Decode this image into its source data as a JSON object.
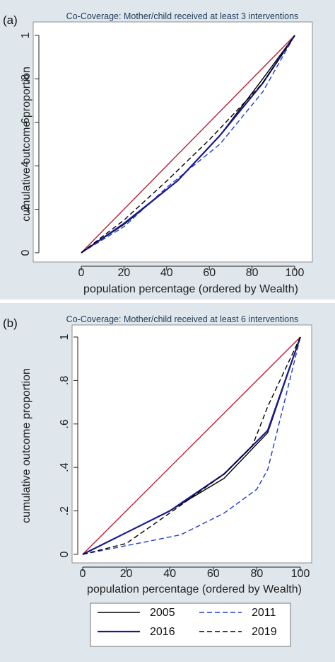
{
  "chart_data": [
    {
      "type": "line",
      "panel_label": "(a)",
      "title": "Co-Coverage: Mother/child received at least 3 interventions",
      "xlabel": "population percentage (ordered by Wealth)",
      "ylabel": "cumulative outcome proportion",
      "xlim": [
        0,
        100
      ],
      "ylim": [
        0,
        1
      ],
      "x_ticks": [
        "0",
        "20",
        "40",
        "60",
        "80",
        "100"
      ],
      "y_ticks": [
        "0",
        ".2",
        ".4",
        ".6",
        ".8",
        "1"
      ],
      "grid": false,
      "series": [
        {
          "name": "equality",
          "color": "#b22234",
          "style": "solid",
          "x": [
            0,
            100
          ],
          "y": [
            0,
            1
          ]
        },
        {
          "name": "2005",
          "color": "#000000",
          "style": "solid",
          "x": [
            0,
            20,
            45,
            65,
            85,
            100
          ],
          "y": [
            0,
            0.13,
            0.33,
            0.54,
            0.8,
            1
          ]
        },
        {
          "name": "2011",
          "color": "#1f3ad6",
          "style": "dashed",
          "x": [
            0,
            20,
            40,
            65,
            85,
            100
          ],
          "y": [
            0,
            0.12,
            0.3,
            0.5,
            0.74,
            1
          ]
        },
        {
          "name": "2016",
          "color": "#1a1a8c",
          "style": "solid",
          "x": [
            0,
            20,
            45,
            65,
            85,
            100
          ],
          "y": [
            0,
            0.135,
            0.33,
            0.54,
            0.78,
            1
          ]
        },
        {
          "name": "2019",
          "color": "#000000",
          "style": "dashed",
          "x": [
            0,
            20,
            40,
            60,
            85,
            100
          ],
          "y": [
            0,
            0.15,
            0.33,
            0.52,
            0.78,
            1
          ]
        }
      ]
    },
    {
      "type": "line",
      "panel_label": "(b)",
      "title": "Co-Coverage: Mother/child received at least 6 interventions",
      "xlabel": "population percentage (ordered by Wealth)",
      "ylabel": "cumulative outcome proportion",
      "xlim": [
        0,
        100
      ],
      "ylim": [
        0,
        1
      ],
      "x_ticks": [
        "0",
        "20",
        "40",
        "60",
        "80",
        "100"
      ],
      "y_ticks": [
        "0",
        ".2",
        ".4",
        ".6",
        ".8",
        "1"
      ],
      "grid": false,
      "series": [
        {
          "name": "equality",
          "color": "#b22234",
          "style": "solid",
          "x": [
            0,
            100
          ],
          "y": [
            0,
            1
          ]
        },
        {
          "name": "2005",
          "color": "#000000",
          "style": "solid",
          "x": [
            0,
            20,
            40,
            65,
            85,
            100
          ],
          "y": [
            0,
            0.1,
            0.2,
            0.35,
            0.56,
            1
          ]
        },
        {
          "name": "2011",
          "color": "#1f3ad6",
          "style": "dashed",
          "x": [
            0,
            20,
            45,
            65,
            80,
            85,
            100
          ],
          "y": [
            0,
            0.04,
            0.09,
            0.19,
            0.3,
            0.39,
            1
          ]
        },
        {
          "name": "2016",
          "color": "#1a1a8c",
          "style": "solid",
          "x": [
            0,
            20,
            40,
            65,
            85,
            100
          ],
          "y": [
            0,
            0.1,
            0.2,
            0.37,
            0.57,
            1
          ]
        },
        {
          "name": "2019",
          "color": "#000000",
          "style": "dashed",
          "x": [
            0,
            20,
            40,
            65,
            78,
            85,
            100
          ],
          "y": [
            0,
            0.05,
            0.19,
            0.37,
            0.5,
            0.68,
            1
          ]
        }
      ]
    }
  ],
  "legend": {
    "placement": "bottom",
    "items": [
      {
        "label": "2005",
        "color": "#000000",
        "style": "solid"
      },
      {
        "label": "2011",
        "color": "#1f3ad6",
        "style": "dashed"
      },
      {
        "label": "2016",
        "color": "#1a1a8c",
        "style": "solid"
      },
      {
        "label": "2019",
        "color": "#000000",
        "style": "dashed"
      }
    ]
  }
}
